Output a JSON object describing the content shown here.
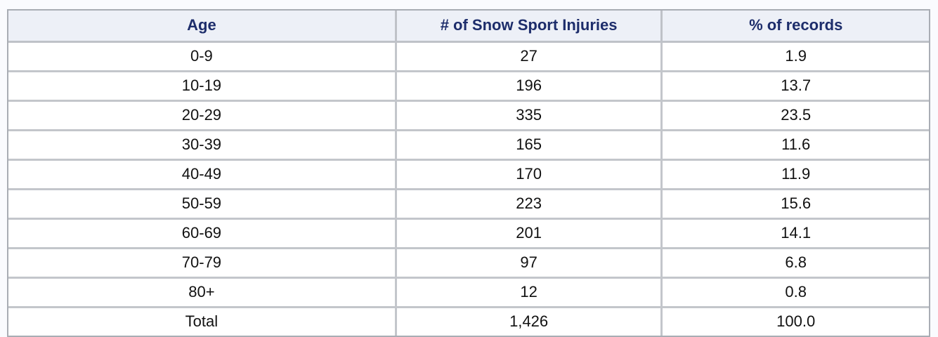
{
  "table": {
    "columns": [
      "Age",
      "# of Snow Sport Injuries",
      "% of records"
    ],
    "rows": [
      [
        "0-9",
        "27",
        "1.9"
      ],
      [
        "10-19",
        "196",
        "13.7"
      ],
      [
        "20-29",
        "335",
        "23.5"
      ],
      [
        "30-39",
        "165",
        "11.6"
      ],
      [
        "40-49",
        "170",
        "11.9"
      ],
      [
        "50-59",
        "223",
        "15.6"
      ],
      [
        "60-69",
        "201",
        "14.1"
      ],
      [
        "70-79",
        "97",
        "6.8"
      ],
      [
        "80+",
        "12",
        "0.8"
      ],
      [
        "Total",
        "1,426",
        "100.0"
      ]
    ]
  },
  "chart_data": {
    "type": "table",
    "title": "",
    "columns": [
      "Age",
      "# of Snow Sport Injuries",
      "% of records"
    ],
    "categories": [
      "0-9",
      "10-19",
      "20-29",
      "30-39",
      "40-49",
      "50-59",
      "60-69",
      "70-79",
      "80+"
    ],
    "series": [
      {
        "name": "# of Snow Sport Injuries",
        "values": [
          27,
          196,
          335,
          165,
          170,
          223,
          201,
          97,
          12
        ]
      },
      {
        "name": "% of records",
        "values": [
          1.9,
          13.7,
          23.5,
          11.6,
          11.9,
          15.6,
          14.1,
          6.8,
          0.8
        ]
      }
    ],
    "totals": {
      "label": "Total",
      "count": "1,426",
      "percent": "100.0"
    }
  },
  "colors": {
    "page_background": "#fafbfe",
    "header_background": "#edf0f7",
    "header_text": "#1d2d6b",
    "body_text": "#111111",
    "outer_border": "#a9adb4",
    "grid_rule": "#c3c6cb",
    "cell_background": "#ffffff"
  }
}
